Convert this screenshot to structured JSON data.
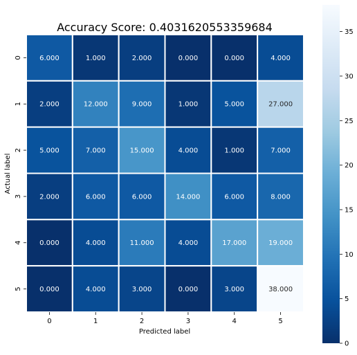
{
  "chart_data": {
    "type": "heatmap",
    "title": "Accuracy Score: 0.4031620553359684",
    "xlabel": "Predicted label",
    "ylabel": "Actual label",
    "x_ticks": [
      "0",
      "1",
      "2",
      "3",
      "4",
      "5"
    ],
    "y_ticks": [
      "0",
      "1",
      "2",
      "3",
      "4",
      "5"
    ],
    "values": [
      [
        6,
        1,
        2,
        0,
        0,
        4
      ],
      [
        2,
        12,
        9,
        1,
        5,
        27
      ],
      [
        5,
        7,
        15,
        4,
        1,
        7
      ],
      [
        2,
        6,
        6,
        14,
        6,
        8
      ],
      [
        0,
        4,
        11,
        4,
        17,
        19
      ],
      [
        0,
        4,
        3,
        0,
        3,
        38
      ]
    ],
    "cell_labels": [
      [
        "6.000",
        "1.000",
        "2.000",
        "0.000",
        "0.000",
        "4.000"
      ],
      [
        "2.000",
        "12.000",
        "9.000",
        "1.000",
        "5.000",
        "27.000"
      ],
      [
        "5.000",
        "7.000",
        "15.000",
        "4.000",
        "1.000",
        "7.000"
      ],
      [
        "2.000",
        "6.000",
        "6.000",
        "14.000",
        "6.000",
        "8.000"
      ],
      [
        "0.000",
        "4.000",
        "11.000",
        "4.000",
        "17.000",
        "19.000"
      ],
      [
        "0.000",
        "4.000",
        "3.000",
        "0.000",
        "3.000",
        "38.000"
      ]
    ],
    "colorscale": "Blues_r",
    "vmin": 0,
    "vmax": 38,
    "colorbar_ticks": [
      "0",
      "5",
      "10",
      "15",
      "20",
      "25",
      "30",
      "35"
    ],
    "colorbar_tick_values": [
      0,
      5,
      10,
      15,
      20,
      25,
      30,
      35
    ],
    "grid_lines": true,
    "legend_position": "right"
  }
}
